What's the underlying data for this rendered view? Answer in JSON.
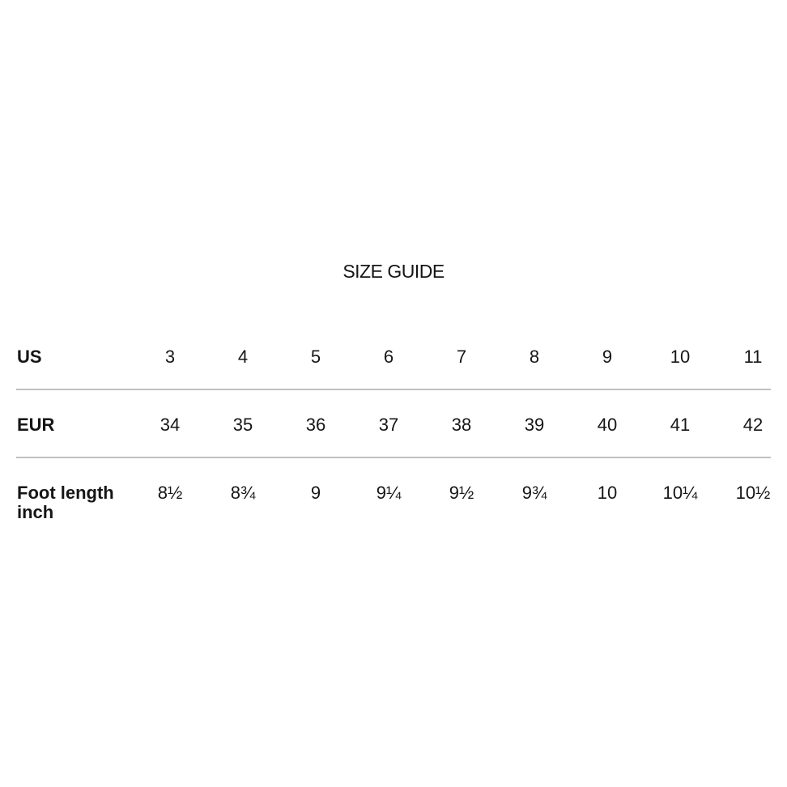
{
  "page": {
    "title": "SIZE GUIDE",
    "background_color": "#ffffff",
    "text_color": "#161616",
    "divider_color": "#c1c1c1"
  },
  "size_table": {
    "rows": [
      {
        "label": "US",
        "values": [
          "3",
          "4",
          "5",
          "6",
          "7",
          "8",
          "9",
          "10",
          "11"
        ]
      },
      {
        "label": "EUR",
        "values": [
          "34",
          "35",
          "36",
          "37",
          "38",
          "39",
          "40",
          "41",
          "42"
        ]
      },
      {
        "label": "Foot length inch",
        "values": [
          "8½",
          "8¾",
          "9",
          "9¼",
          "9½",
          "9¾",
          "10",
          "10¼",
          "10½"
        ]
      }
    ]
  },
  "chart_data": {
    "type": "table",
    "title": "SIZE GUIDE",
    "row_headers": [
      "US",
      "EUR",
      "Foot length inch"
    ],
    "rows": [
      [
        "3",
        "4",
        "5",
        "6",
        "7",
        "8",
        "9",
        "10",
        "11"
      ],
      [
        "34",
        "35",
        "36",
        "37",
        "38",
        "39",
        "40",
        "41",
        "42"
      ],
      [
        "8½",
        "8¾",
        "9",
        "9¼",
        "9½",
        "9¾",
        "10",
        "10¼",
        "10½"
      ]
    ]
  }
}
